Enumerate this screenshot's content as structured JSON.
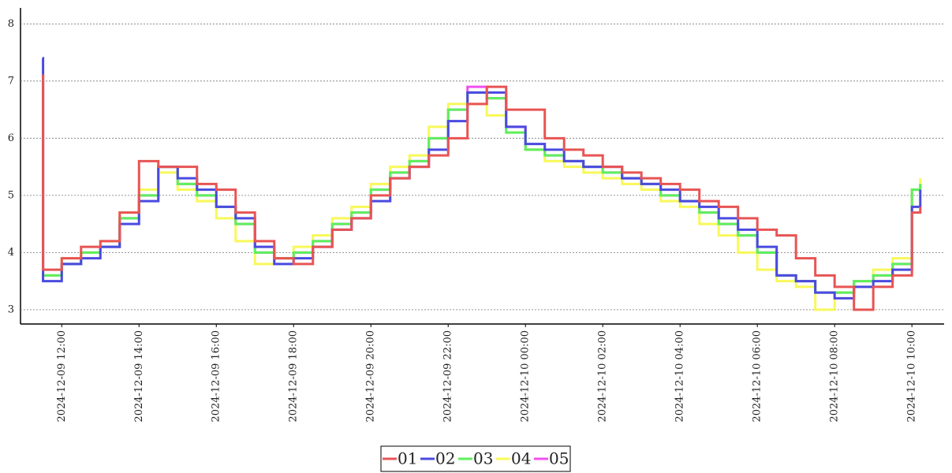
{
  "chart_data": {
    "type": "line",
    "step": "post",
    "grid": true,
    "legend": "bottom",
    "x": [
      "2024-12-09 11:30",
      "2024-12-09 11:31",
      "2024-12-09 12:00",
      "2024-12-09 12:30",
      "2024-12-09 13:00",
      "2024-12-09 13:30",
      "2024-12-09 14:00",
      "2024-12-09 14:30",
      "2024-12-09 15:00",
      "2024-12-09 15:30",
      "2024-12-09 16:00",
      "2024-12-09 16:30",
      "2024-12-09 17:00",
      "2024-12-09 17:30",
      "2024-12-09 18:00",
      "2024-12-09 18:30",
      "2024-12-09 19:00",
      "2024-12-09 19:30",
      "2024-12-09 20:00",
      "2024-12-09 20:30",
      "2024-12-09 21:00",
      "2024-12-09 21:30",
      "2024-12-09 22:00",
      "2024-12-09 22:30",
      "2024-12-09 23:00",
      "2024-12-09 23:30",
      "2024-12-10 00:00",
      "2024-12-10 00:30",
      "2024-12-10 01:00",
      "2024-12-10 01:30",
      "2024-12-10 02:00",
      "2024-12-10 02:30",
      "2024-12-10 03:00",
      "2024-12-10 03:30",
      "2024-12-10 04:00",
      "2024-12-10 04:30",
      "2024-12-10 05:00",
      "2024-12-10 05:30",
      "2024-12-10 06:00",
      "2024-12-10 06:30",
      "2024-12-10 07:00",
      "2024-12-10 07:30",
      "2024-12-10 08:00",
      "2024-12-10 08:30",
      "2024-12-10 09:00",
      "2024-12-10 09:30",
      "2024-12-10 10:00",
      "2024-12-10 10:13"
    ],
    "series": [
      {
        "name": "01",
        "color": "#e85454",
        "values": [
          7.1,
          3.7,
          3.9,
          4.1,
          4.2,
          4.7,
          5.6,
          5.5,
          5.5,
          5.2,
          5.1,
          4.7,
          4.2,
          3.9,
          3.8,
          4.1,
          4.4,
          4.6,
          5.0,
          5.3,
          5.5,
          5.7,
          6.0,
          6.6,
          6.9,
          6.5,
          6.5,
          6.0,
          5.8,
          5.7,
          5.5,
          5.4,
          5.3,
          5.2,
          5.1,
          4.9,
          4.8,
          4.6,
          4.4,
          4.3,
          3.9,
          3.6,
          3.4,
          3.0,
          3.4,
          3.6,
          4.7,
          4.8
        ]
      },
      {
        "name": "02",
        "color": "#4a4ae0",
        "values": [
          7.4,
          3.5,
          3.8,
          3.9,
          4.1,
          4.5,
          4.9,
          5.5,
          5.3,
          5.1,
          4.8,
          4.6,
          4.1,
          3.8,
          3.9,
          4.1,
          4.4,
          4.6,
          4.9,
          5.3,
          5.5,
          5.8,
          6.3,
          6.8,
          6.8,
          6.2,
          5.9,
          5.8,
          5.6,
          5.5,
          5.5,
          5.3,
          5.2,
          5.1,
          4.9,
          4.8,
          4.6,
          4.4,
          4.1,
          3.6,
          3.5,
          3.3,
          3.2,
          3.4,
          3.5,
          3.7,
          4.8,
          5.1
        ]
      },
      {
        "name": "03",
        "color": "#5cf05c",
        "values": [
          7.1,
          3.6,
          3.8,
          4.0,
          4.1,
          4.6,
          5.0,
          5.5,
          5.2,
          5.0,
          4.8,
          4.5,
          4.0,
          3.9,
          4.0,
          4.2,
          4.5,
          4.7,
          5.1,
          5.4,
          5.6,
          6.0,
          6.5,
          6.8,
          6.7,
          6.1,
          5.8,
          5.7,
          5.6,
          5.5,
          5.4,
          5.3,
          5.2,
          5.0,
          4.9,
          4.7,
          4.5,
          4.3,
          4.0,
          3.6,
          3.5,
          3.3,
          3.3,
          3.5,
          3.6,
          3.8,
          5.1,
          5.2
        ]
      },
      {
        "name": "04",
        "color": "#f8f85a",
        "values": [
          7.1,
          3.6,
          3.9,
          4.0,
          4.2,
          4.7,
          5.1,
          5.4,
          5.1,
          4.9,
          4.6,
          4.2,
          3.8,
          3.9,
          4.1,
          4.3,
          4.6,
          4.8,
          5.2,
          5.5,
          5.7,
          6.2,
          6.6,
          6.6,
          6.4,
          6.1,
          5.8,
          5.6,
          5.5,
          5.4,
          5.3,
          5.2,
          5.1,
          4.9,
          4.8,
          4.5,
          4.3,
          4.0,
          3.7,
          3.5,
          3.4,
          3.0,
          3.3,
          3.5,
          3.7,
          3.9,
          5.1,
          5.3
        ]
      },
      {
        "name": "05",
        "color": "#f050f0",
        "values": [
          7.1,
          3.6,
          3.8,
          4.0,
          4.1,
          4.6,
          5.0,
          5.5,
          5.2,
          5.0,
          4.8,
          4.5,
          4.0,
          3.9,
          4.0,
          4.2,
          4.5,
          4.7,
          5.1,
          5.4,
          5.6,
          6.0,
          6.5,
          6.9,
          6.7,
          6.2,
          5.8,
          5.7,
          5.6,
          5.5,
          5.4,
          5.3,
          5.2,
          5.0,
          4.9,
          4.7,
          4.5,
          4.3,
          4.0,
          3.6,
          3.5,
          3.3,
          3.3,
          3.5,
          3.6,
          3.8,
          5.1,
          5.2
        ]
      }
    ],
    "xlim": [
      "2024-12-09 10:56",
      "2024-12-10 10:50"
    ],
    "xticks": [
      "2024-12-09 12:00",
      "2024-12-09 14:00",
      "2024-12-09 16:00",
      "2024-12-09 18:00",
      "2024-12-09 20:00",
      "2024-12-09 22:00",
      "2024-12-10 00:00",
      "2024-12-10 02:00",
      "2024-12-10 04:00",
      "2024-12-10 06:00",
      "2024-12-10 08:00",
      "2024-12-10 10:00"
    ],
    "ylim": [
      2.75,
      8.28
    ],
    "yticks": [
      3,
      4,
      5,
      6,
      7,
      8
    ]
  }
}
